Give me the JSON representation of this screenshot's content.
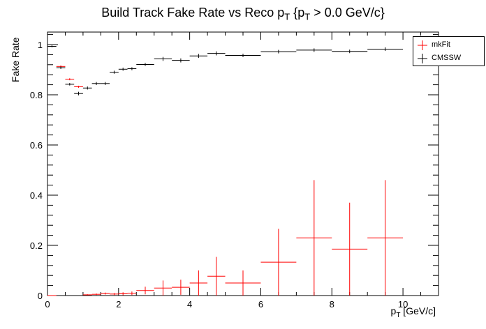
{
  "chart_data": {
    "type": "scatter",
    "title_main": "Build Track Fake Rate vs Reco p",
    "title_sub1": "T",
    "title_brace": " {p",
    "title_sub2": "T",
    "title_tail": " > 0.0 GeV/c}",
    "ylabel": "Fake Rate",
    "xlabel_main": "p",
    "xlabel_sub": "T",
    "xlabel_unit": " [GeV/c]",
    "xlim": [
      0,
      11
    ],
    "ylim": [
      0,
      1.05
    ],
    "x_ticks": [
      "0",
      "2",
      "4",
      "6",
      "8",
      "10"
    ],
    "y_ticks": [
      "0",
      "0.2",
      "0.4",
      "0.6",
      "0.8",
      "1"
    ],
    "legend_position": "top-right",
    "series": [
      {
        "name": "mkFit",
        "color": "#ff0000",
        "points": [
          {
            "x0": 0.0,
            "x1": 0.25,
            "y": 0.0,
            "err": 0.0
          },
          {
            "x0": 0.25,
            "x1": 0.5,
            "y": 0.913,
            "err": 0.004
          },
          {
            "x0": 0.5,
            "x1": 0.75,
            "y": 0.862,
            "err": 0.004
          },
          {
            "x0": 0.75,
            "x1": 1.0,
            "y": 0.832,
            "err": 0.004
          },
          {
            "x0": 1.0,
            "x1": 1.25,
            "y": 0.003,
            "err": 0.002
          },
          {
            "x0": 1.25,
            "x1": 1.5,
            "y": 0.005,
            "err": 0.003
          },
          {
            "x0": 1.5,
            "x1": 1.75,
            "y": 0.008,
            "err": 0.004
          },
          {
            "x0": 1.75,
            "x1": 2.0,
            "y": 0.006,
            "err": 0.004
          },
          {
            "x0": 2.0,
            "x1": 2.25,
            "y": 0.007,
            "err": 0.006
          },
          {
            "x0": 2.25,
            "x1": 2.5,
            "y": 0.009,
            "err": 0.007
          },
          {
            "x0": 2.5,
            "x1": 3.0,
            "y": 0.02,
            "err": 0.015
          },
          {
            "x0": 3.0,
            "x1": 3.5,
            "y": 0.03,
            "err": 0.03
          },
          {
            "x0": 3.5,
            "x1": 4.0,
            "y": 0.033,
            "err": 0.03
          },
          {
            "x0": 4.0,
            "x1": 4.5,
            "y": 0.05,
            "err": 0.05
          },
          {
            "x0": 4.5,
            "x1": 5.0,
            "y": 0.077,
            "err": 0.077
          },
          {
            "x0": 5.0,
            "x1": 6.0,
            "y": 0.05,
            "err": 0.05
          },
          {
            "x0": 6.0,
            "x1": 7.0,
            "y": 0.133,
            "err": 0.133
          },
          {
            "x0": 7.0,
            "x1": 8.0,
            "y": 0.23,
            "err": 0.23
          },
          {
            "x0": 8.0,
            "x1": 9.0,
            "y": 0.185,
            "err": 0.185
          },
          {
            "x0": 9.0,
            "x1": 10.0,
            "y": 0.23,
            "err": 0.23
          }
        ]
      },
      {
        "name": "CMSSW",
        "color": "#000000",
        "points": [
          {
            "x0": 0.0,
            "x1": 0.25,
            "y": 0.993,
            "err": 0.004
          },
          {
            "x0": 0.25,
            "x1": 0.5,
            "y": 0.908,
            "err": 0.005
          },
          {
            "x0": 0.5,
            "x1": 0.75,
            "y": 0.842,
            "err": 0.005
          },
          {
            "x0": 0.75,
            "x1": 1.0,
            "y": 0.805,
            "err": 0.007
          },
          {
            "x0": 1.0,
            "x1": 1.25,
            "y": 0.827,
            "err": 0.006
          },
          {
            "x0": 1.25,
            "x1": 1.5,
            "y": 0.845,
            "err": 0.006
          },
          {
            "x0": 1.5,
            "x1": 1.75,
            "y": 0.845,
            "err": 0.006
          },
          {
            "x0": 1.75,
            "x1": 2.0,
            "y": 0.89,
            "err": 0.006
          },
          {
            "x0": 2.0,
            "x1": 2.25,
            "y": 0.902,
            "err": 0.006
          },
          {
            "x0": 2.25,
            "x1": 2.5,
            "y": 0.904,
            "err": 0.006
          },
          {
            "x0": 2.5,
            "x1": 3.0,
            "y": 0.921,
            "err": 0.006
          },
          {
            "x0": 3.0,
            "x1": 3.5,
            "y": 0.943,
            "err": 0.008
          },
          {
            "x0": 3.5,
            "x1": 4.0,
            "y": 0.937,
            "err": 0.008
          },
          {
            "x0": 4.0,
            "x1": 4.5,
            "y": 0.955,
            "err": 0.008
          },
          {
            "x0": 4.5,
            "x1": 5.0,
            "y": 0.965,
            "err": 0.008
          },
          {
            "x0": 5.0,
            "x1": 6.0,
            "y": 0.957,
            "err": 0.007
          },
          {
            "x0": 6.0,
            "x1": 7.0,
            "y": 0.972,
            "err": 0.007
          },
          {
            "x0": 7.0,
            "x1": 8.0,
            "y": 0.978,
            "err": 0.007
          },
          {
            "x0": 8.0,
            "x1": 9.0,
            "y": 0.973,
            "err": 0.007
          },
          {
            "x0": 9.0,
            "x1": 10.0,
            "y": 0.982,
            "err": 0.007
          }
        ]
      }
    ]
  }
}
